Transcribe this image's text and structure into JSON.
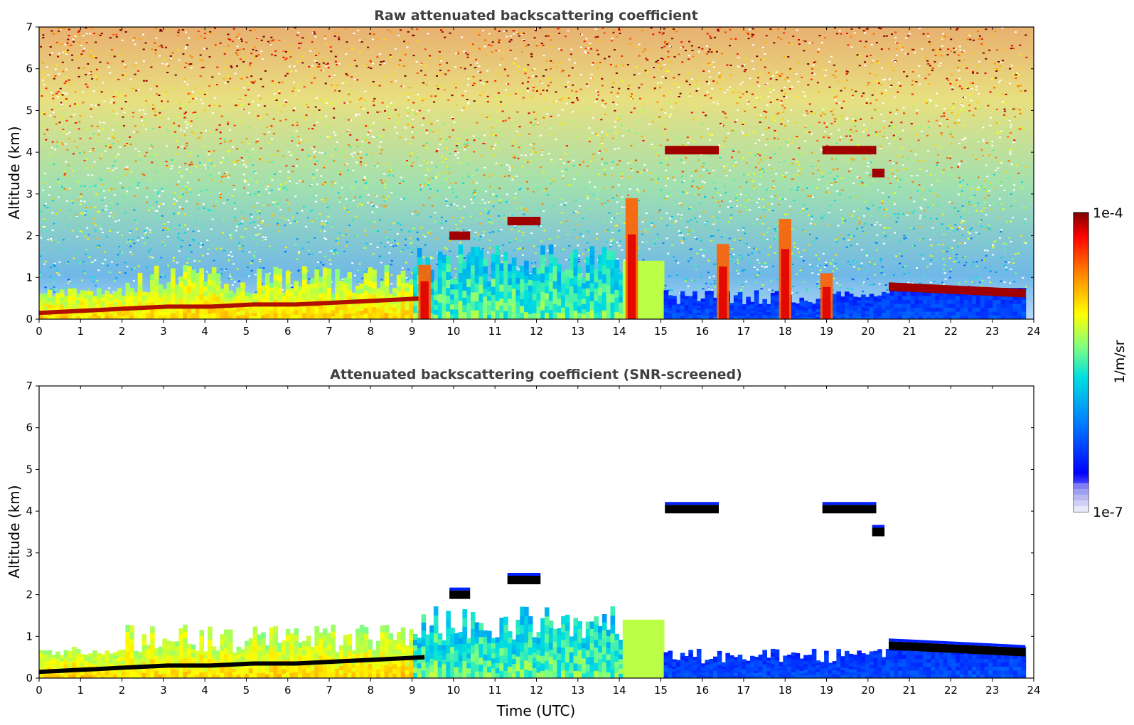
{
  "chart_data": [
    {
      "type": "heatmap",
      "title": "Raw attenuated backscattering coefficient",
      "xlabel": "",
      "ylabel": "Altitude (km)",
      "xlim": [
        0,
        24
      ],
      "ylim": [
        0,
        7
      ],
      "xticks": [
        "0",
        "1",
        "2",
        "3",
        "4",
        "5",
        "6",
        "7",
        "8",
        "9",
        "10",
        "11",
        "12",
        "13",
        "14",
        "15",
        "16",
        "17",
        "18",
        "19",
        "20",
        "21",
        "22",
        "23",
        "24"
      ],
      "yticks": [
        "0",
        "1",
        "2",
        "3",
        "4",
        "5",
        "6",
        "7"
      ],
      "screened": false,
      "features": [
        {
          "kind": "boundary_layer",
          "t0": 0,
          "t1": 9.3,
          "top": [
            0.15,
            0.2,
            0.25,
            0.3,
            0.3,
            0.35,
            0.35,
            0.4,
            0.45,
            0.5
          ]
        },
        {
          "kind": "cloud_layer",
          "t0": 15.1,
          "t1": 16.4,
          "alt": 4.05
        },
        {
          "kind": "cloud_layer",
          "t0": 18.9,
          "t1": 20.2,
          "alt": 4.05
        },
        {
          "kind": "cloud_layer",
          "t0": 20.1,
          "t1": 20.4,
          "alt": 3.5
        },
        {
          "kind": "cloud_layer",
          "t0": 9.9,
          "t1": 10.4,
          "alt": 2.0
        },
        {
          "kind": "cloud_layer",
          "t0": 11.3,
          "t1": 12.1,
          "alt": 2.35
        },
        {
          "kind": "cloud_layer",
          "t0": 20.5,
          "t1": 23.8,
          "alt_start": 0.78,
          "alt_end": 0.62
        },
        {
          "kind": "precipitation_column",
          "t": 9.3,
          "top": 1.3
        },
        {
          "kind": "precipitation_column",
          "t": 14.3,
          "top": 2.9
        },
        {
          "kind": "precipitation_column",
          "t": 16.5,
          "top": 1.8
        },
        {
          "kind": "precipitation_column",
          "t": 18.0,
          "top": 2.4
        },
        {
          "kind": "precipitation_column",
          "t": 19.0,
          "top": 1.1
        }
      ]
    },
    {
      "type": "heatmap",
      "title": "Attenuated backscattering coefficient (SNR-screened)",
      "xlabel": "Time (UTC)",
      "ylabel": "Altitude (km)",
      "xlim": [
        0,
        24
      ],
      "ylim": [
        0,
        7
      ],
      "xticks": [
        "0",
        "1",
        "2",
        "3",
        "4",
        "5",
        "6",
        "7",
        "8",
        "9",
        "10",
        "11",
        "12",
        "13",
        "14",
        "15",
        "16",
        "17",
        "18",
        "19",
        "20",
        "21",
        "22",
        "23",
        "24"
      ],
      "yticks": [
        "0",
        "1",
        "2",
        "3",
        "4",
        "5",
        "6",
        "7"
      ],
      "screened": true,
      "features": [
        {
          "kind": "boundary_layer",
          "t0": 0,
          "t1": 9.3,
          "top": [
            0.15,
            0.2,
            0.25,
            0.3,
            0.3,
            0.35,
            0.35,
            0.4,
            0.45,
            0.5
          ]
        },
        {
          "kind": "cloud_layer",
          "t0": 15.1,
          "t1": 16.4,
          "alt": 4.05
        },
        {
          "kind": "cloud_layer",
          "t0": 18.9,
          "t1": 20.2,
          "alt": 4.05
        },
        {
          "kind": "cloud_layer",
          "t0": 20.1,
          "t1": 20.4,
          "alt": 3.5
        },
        {
          "kind": "cloud_layer",
          "t0": 9.9,
          "t1": 10.4,
          "alt": 2.0
        },
        {
          "kind": "cloud_layer",
          "t0": 11.3,
          "t1": 12.1,
          "alt": 2.35
        },
        {
          "kind": "cloud_layer",
          "t0": 20.5,
          "t1": 23.8,
          "alt_start": 0.78,
          "alt_end": 0.62
        }
      ]
    }
  ],
  "colorbar": {
    "label": "1/m/sr",
    "max_label": "1e-4",
    "min_label": "1e-7",
    "colormap": "jet",
    "colors": [
      "#e8e8f8",
      "#a0a0f0",
      "#0000ff",
      "#0080ff",
      "#00e0e0",
      "#80ff80",
      "#ffff00",
      "#ff8000",
      "#ff0000",
      "#800000"
    ]
  }
}
